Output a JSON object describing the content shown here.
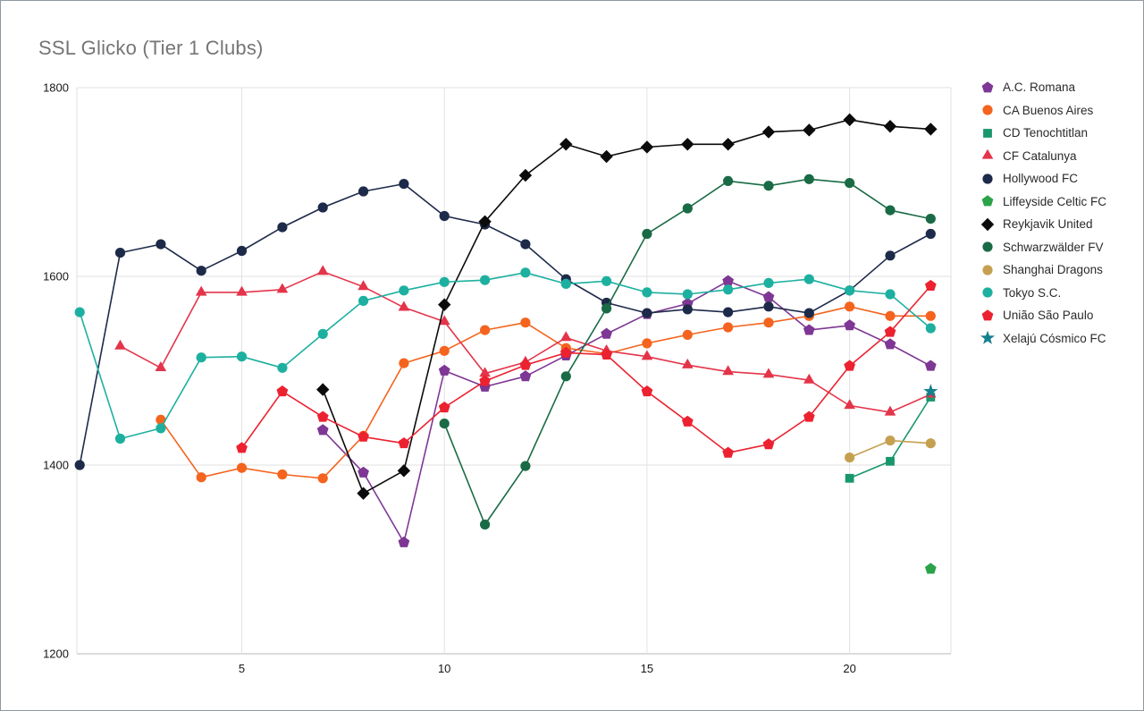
{
  "chart_data": {
    "type": "line",
    "title": "SSL Glicko (Tier 1 Clubs)",
    "xlabel": "",
    "ylabel": "",
    "xlim": [
      0.93,
      22.5
    ],
    "ylim": [
      1200,
      1800
    ],
    "x_ticks": [
      5,
      10,
      15,
      20
    ],
    "y_ticks": [
      1200,
      1400,
      1600,
      1800
    ],
    "grid": true,
    "legend_position": "right",
    "series": [
      {
        "name": "A.C. Romana",
        "color": "#7e3794",
        "marker": "pentagon",
        "points": [
          [
            7,
            1437
          ],
          [
            8,
            1392
          ],
          [
            9,
            1318
          ],
          [
            10,
            1500
          ],
          [
            11,
            1483
          ],
          [
            12,
            1494
          ],
          [
            13,
            1516
          ],
          [
            14,
            1539
          ],
          [
            15,
            1560
          ],
          [
            16,
            1571
          ],
          [
            17,
            1595
          ],
          [
            18,
            1578
          ],
          [
            19,
            1543
          ],
          [
            20,
            1548
          ],
          [
            21,
            1528
          ],
          [
            22,
            1505
          ]
        ]
      },
      {
        "name": "CA Buenos Aires",
        "color": "#f4641e",
        "marker": "circle",
        "points": [
          [
            3,
            1448
          ],
          [
            4,
            1387
          ],
          [
            5,
            1397
          ],
          [
            6,
            1390
          ],
          [
            7,
            1386
          ],
          [
            8,
            1431
          ],
          [
            9,
            1508
          ],
          [
            10,
            1521
          ],
          [
            11,
            1543
          ],
          [
            12,
            1551
          ],
          [
            13,
            1524
          ],
          [
            14,
            1518
          ],
          [
            15,
            1529
          ],
          [
            16,
            1538
          ],
          [
            17,
            1546
          ],
          [
            18,
            1551
          ],
          [
            19,
            1558
          ],
          [
            20,
            1568
          ],
          [
            21,
            1558
          ],
          [
            22,
            1558
          ]
        ]
      },
      {
        "name": "CD Tenochtitlan",
        "color": "#18976c",
        "marker": "square",
        "points": [
          [
            20,
            1386
          ],
          [
            21,
            1404
          ],
          [
            22,
            1472
          ]
        ]
      },
      {
        "name": "CF Catalunya",
        "color": "#e4344a",
        "marker": "triangle",
        "points": [
          [
            2,
            1526
          ],
          [
            3,
            1503
          ],
          [
            4,
            1583
          ],
          [
            5,
            1583
          ],
          [
            6,
            1586
          ],
          [
            7,
            1605
          ],
          [
            8,
            1589
          ],
          [
            9,
            1567
          ],
          [
            10,
            1552
          ],
          [
            11,
            1497
          ],
          [
            12,
            1509
          ],
          [
            13,
            1535
          ],
          [
            14,
            1521
          ],
          [
            15,
            1515
          ],
          [
            16,
            1506
          ],
          [
            17,
            1499
          ],
          [
            18,
            1496
          ],
          [
            19,
            1490
          ],
          [
            20,
            1463
          ],
          [
            21,
            1456
          ],
          [
            22,
            1475
          ]
        ]
      },
      {
        "name": "Hollywood FC",
        "color": "#1e2a4a",
        "marker": "circle",
        "points": [
          [
            1,
            1400
          ],
          [
            2,
            1625
          ],
          [
            3,
            1634
          ],
          [
            4,
            1606
          ],
          [
            5,
            1627
          ],
          [
            6,
            1652
          ],
          [
            7,
            1673
          ],
          [
            8,
            1690
          ],
          [
            9,
            1698
          ],
          [
            10,
            1664
          ],
          [
            11,
            1655
          ],
          [
            12,
            1634
          ],
          [
            13,
            1597
          ],
          [
            14,
            1572
          ],
          [
            15,
            1561
          ],
          [
            16,
            1565
          ],
          [
            17,
            1562
          ],
          [
            18,
            1568
          ],
          [
            19,
            1561
          ],
          [
            20,
            1585
          ],
          [
            21,
            1622
          ],
          [
            22,
            1645
          ]
        ]
      },
      {
        "name": "Liffeyside Celtic FC",
        "color": "#2aa349",
        "marker": "pentagon",
        "points": [
          [
            22,
            1290
          ]
        ]
      },
      {
        "name": "Reykjavik United",
        "color": "#0b0b0b",
        "marker": "diamond",
        "points": [
          [
            7,
            1480
          ],
          [
            8,
            1370
          ],
          [
            9,
            1394
          ],
          [
            10,
            1570
          ],
          [
            11,
            1658
          ],
          [
            12,
            1707
          ],
          [
            13,
            1740
          ],
          [
            14,
            1727
          ],
          [
            15,
            1737
          ],
          [
            16,
            1740
          ],
          [
            17,
            1740
          ],
          [
            18,
            1753
          ],
          [
            19,
            1755
          ],
          [
            20,
            1766
          ],
          [
            21,
            1759
          ],
          [
            22,
            1756
          ]
        ]
      },
      {
        "name": "Schwarzwälder FV",
        "color": "#1a6b45",
        "marker": "circle",
        "points": [
          [
            10,
            1444
          ],
          [
            11,
            1337
          ],
          [
            12,
            1399
          ],
          [
            13,
            1494
          ],
          [
            14,
            1566
          ],
          [
            15,
            1645
          ],
          [
            16,
            1672
          ],
          [
            17,
            1701
          ],
          [
            18,
            1696
          ],
          [
            19,
            1703
          ],
          [
            20,
            1699
          ],
          [
            21,
            1670
          ],
          [
            22,
            1661
          ]
        ]
      },
      {
        "name": "Shanghai Dragons",
        "color": "#c5a050",
        "marker": "circle",
        "points": [
          [
            20,
            1408
          ],
          [
            21,
            1426
          ],
          [
            22,
            1423
          ]
        ]
      },
      {
        "name": "Tokyo S.C.",
        "color": "#1db0a0",
        "marker": "circle",
        "points": [
          [
            1,
            1562
          ],
          [
            2,
            1428
          ],
          [
            3,
            1439
          ],
          [
            4,
            1514
          ],
          [
            5,
            1515
          ],
          [
            6,
            1503
          ],
          [
            7,
            1539
          ],
          [
            8,
            1574
          ],
          [
            9,
            1585
          ],
          [
            10,
            1594
          ],
          [
            11,
            1596
          ],
          [
            12,
            1604
          ],
          [
            13,
            1592
          ],
          [
            14,
            1595
          ],
          [
            15,
            1583
          ],
          [
            16,
            1581
          ],
          [
            17,
            1586
          ],
          [
            18,
            1593
          ],
          [
            19,
            1597
          ],
          [
            20,
            1585
          ],
          [
            21,
            1581
          ],
          [
            22,
            1545
          ]
        ]
      },
      {
        "name": "União São Paulo",
        "color": "#ec2230",
        "marker": "pentagon",
        "points": [
          [
            5,
            1418
          ],
          [
            6,
            1478
          ],
          [
            7,
            1451
          ],
          [
            8,
            1430
          ],
          [
            9,
            1423
          ],
          [
            10,
            1461
          ],
          [
            11,
            1489
          ],
          [
            12,
            1506
          ],
          [
            13,
            1519
          ],
          [
            14,
            1517
          ],
          [
            15,
            1478
          ],
          [
            16,
            1446
          ],
          [
            17,
            1413
          ],
          [
            18,
            1422
          ],
          [
            19,
            1451
          ],
          [
            20,
            1505
          ],
          [
            21,
            1541
          ],
          [
            22,
            1590
          ]
        ]
      },
      {
        "name": "Xelajú Cósmico FC",
        "color": "#12808e",
        "marker": "star",
        "points": [
          [
            22,
            1478
          ]
        ]
      }
    ]
  }
}
